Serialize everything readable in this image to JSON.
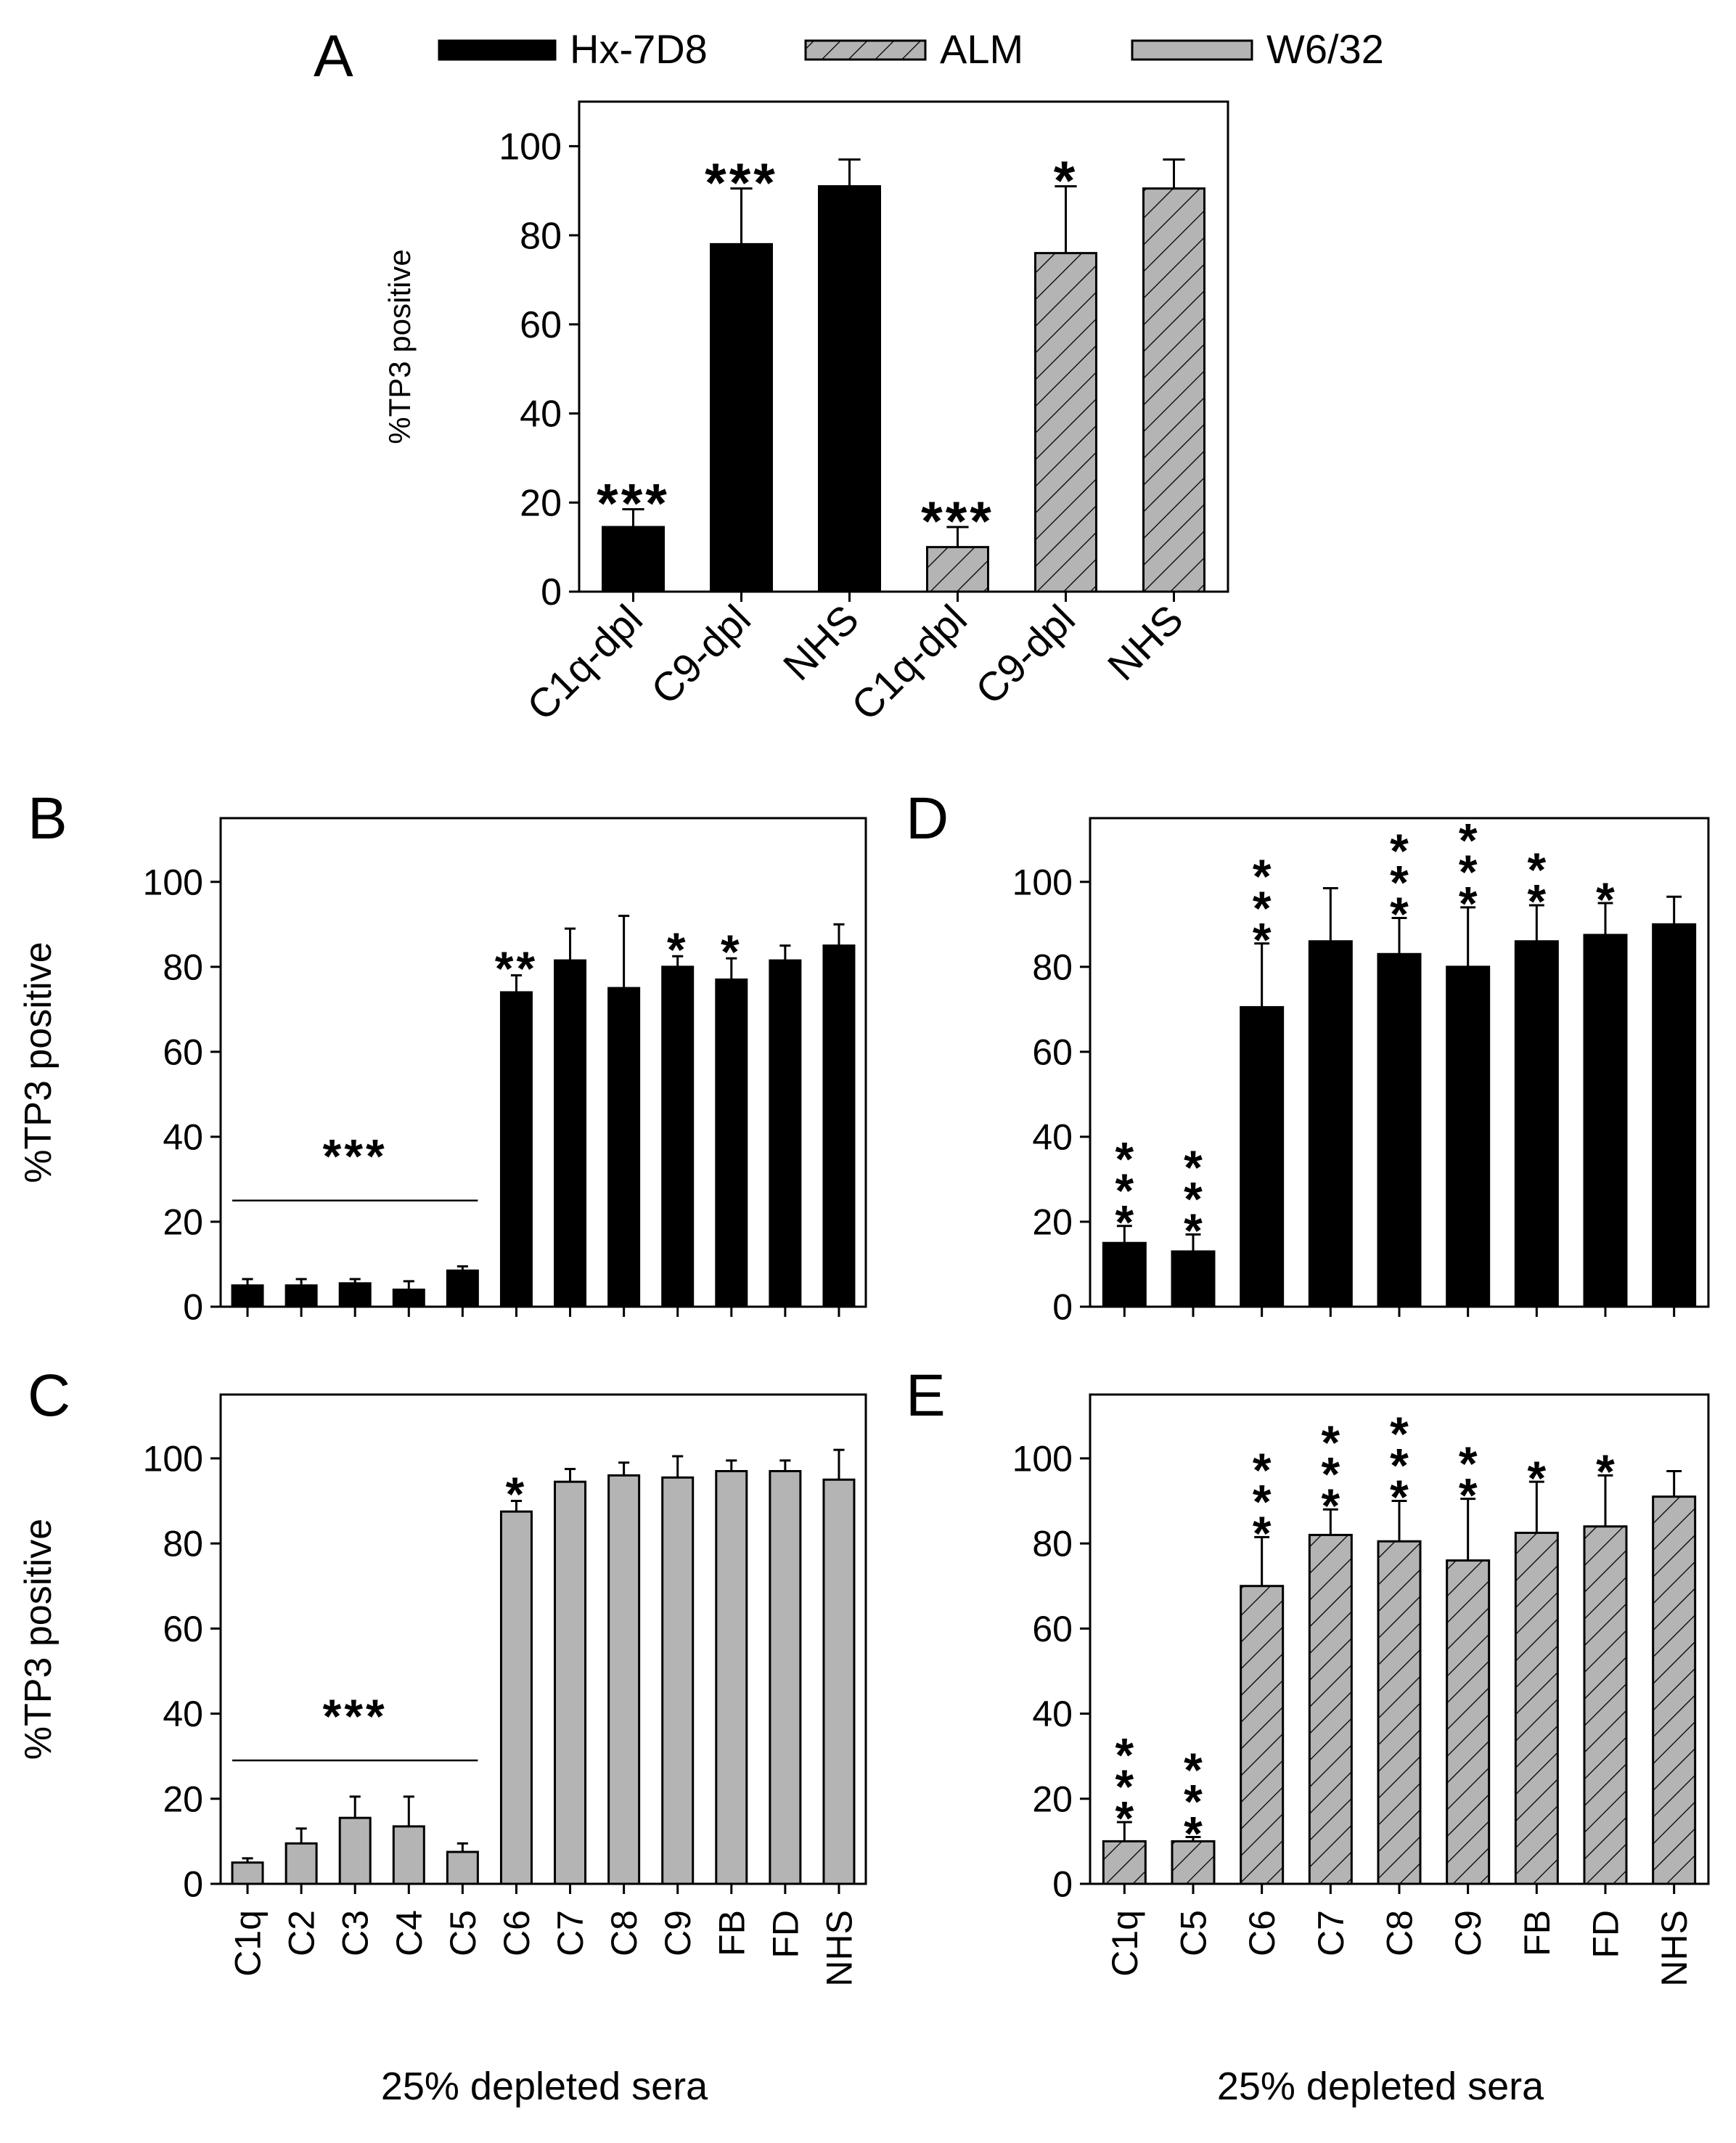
{
  "legend": [
    {
      "label": "Hx-7D8",
      "style": "solid"
    },
    {
      "label": "ALM",
      "style": "hatch"
    },
    {
      "label": "W6/32",
      "style": "gray"
    }
  ],
  "colors": {
    "black": "#000000",
    "gray": "#b4b4b4",
    "hatch_line": "#000000"
  },
  "chart_data": [
    {
      "panel": "A",
      "type": "bar",
      "ylabel": "%TP3 positive",
      "ylim": [
        0,
        110
      ],
      "yticks": [
        0,
        20,
        40,
        60,
        80,
        100
      ],
      "categories": [
        "C1q-dpl",
        "C9-dpl",
        "NHS",
        "C1q-dpl",
        "C9-dpl",
        "NHS"
      ],
      "values": [
        14.5,
        78,
        91,
        10,
        76,
        90.5
      ],
      "errors": [
        4,
        12.5,
        6,
        4.5,
        15,
        6.5
      ],
      "fills": [
        "solid",
        "solid",
        "solid",
        "hatch",
        "hatch",
        "hatch"
      ],
      "sig": [
        "***",
        "***",
        "",
        "***",
        "*",
        ""
      ],
      "sig_layout": "horizontal",
      "xlabel": ""
    },
    {
      "panel": "B",
      "type": "bar",
      "ylabel": "%TP3 positive",
      "ylim": [
        0,
        115
      ],
      "yticks": [
        0,
        20,
        40,
        60,
        80,
        100
      ],
      "categories": [
        "C1q",
        "C2",
        "C3",
        "C4",
        "C5",
        "C6",
        "C7",
        "C8",
        "C9",
        "FB",
        "FD",
        "NHS"
      ],
      "values": [
        5,
        5,
        5.5,
        4,
        8.5,
        74,
        81.5,
        75,
        80,
        77,
        81.5,
        85
      ],
      "errors": [
        1.5,
        1.5,
        1,
        2,
        1,
        4,
        7.5,
        17,
        2.5,
        5,
        3.5,
        5
      ],
      "fills": [
        "solid",
        "solid",
        "solid",
        "solid",
        "solid",
        "solid",
        "solid",
        "solid",
        "solid",
        "solid",
        "solid",
        "solid"
      ],
      "sig": [
        "",
        "",
        "",
        "",
        "",
        "**",
        "",
        "",
        "*",
        "*",
        "",
        ""
      ],
      "sig_layout": "horizontal",
      "group_sig": {
        "label": "***",
        "from": 0,
        "to": 4,
        "y": 25
      },
      "xlabel": ""
    },
    {
      "panel": "C",
      "type": "bar",
      "ylabel": "%TP3 positive",
      "ylim": [
        0,
        115
      ],
      "yticks": [
        0,
        20,
        40,
        60,
        80,
        100
      ],
      "categories": [
        "C1q",
        "C2",
        "C3",
        "C4",
        "C5",
        "C6",
        "C7",
        "C8",
        "C9",
        "FB",
        "FD",
        "NHS"
      ],
      "values": [
        5,
        9.5,
        15.5,
        13.5,
        7.5,
        87.5,
        94.5,
        96,
        95.5,
        97,
        97,
        95
      ],
      "errors": [
        1,
        3.5,
        5,
        7,
        2,
        2.5,
        3,
        3,
        5,
        2.5,
        2.5,
        7
      ],
      "fills": [
        "gray",
        "gray",
        "gray",
        "gray",
        "gray",
        "gray",
        "gray",
        "gray",
        "gray",
        "gray",
        "gray",
        "gray"
      ],
      "sig": [
        "",
        "",
        "",
        "",
        "",
        "*",
        "",
        "",
        "",
        "",
        "",
        ""
      ],
      "sig_layout": "horizontal",
      "group_sig": {
        "label": "***",
        "from": 0,
        "to": 4,
        "y": 29
      },
      "xlabel": "25% depleted sera"
    },
    {
      "panel": "D",
      "type": "bar",
      "ylabel": "",
      "ylim": [
        0,
        115
      ],
      "yticks": [
        0,
        20,
        40,
        60,
        80,
        100
      ],
      "categories": [
        "C1q",
        "C5",
        "C6",
        "C7",
        "C8",
        "C9",
        "FB",
        "FD",
        "NHS"
      ],
      "values": [
        15,
        13,
        70.5,
        86,
        83,
        80,
        86,
        87.5,
        90
      ],
      "errors": [
        4,
        4,
        15,
        12.5,
        8.5,
        14,
        8.5,
        7.5,
        6.5
      ],
      "fills": [
        "solid",
        "solid",
        "solid",
        "solid",
        "solid",
        "solid",
        "solid",
        "solid",
        "solid"
      ],
      "sig": [
        "***",
        "***",
        "***",
        "",
        "***",
        "***",
        "**",
        "*",
        ""
      ],
      "sig_layout": "vertical",
      "xlabel": ""
    },
    {
      "panel": "E",
      "type": "bar",
      "ylabel": "",
      "ylim": [
        0,
        115
      ],
      "yticks": [
        0,
        20,
        40,
        60,
        80,
        100
      ],
      "categories": [
        "C1q",
        "C5",
        "C6",
        "C7",
        "C8",
        "C9",
        "FB",
        "FD",
        "NHS"
      ],
      "values": [
        10,
        10,
        70,
        82,
        80.5,
        76,
        82.5,
        84,
        91
      ],
      "errors": [
        4.5,
        1,
        11.5,
        6,
        9.5,
        14.5,
        12,
        12,
        6
      ],
      "fills": [
        "hatch",
        "hatch",
        "hatch",
        "hatch",
        "hatch",
        "hatch",
        "hatch",
        "hatch",
        "hatch"
      ],
      "sig": [
        "***",
        "***",
        "***",
        "***",
        "***",
        "**",
        "*",
        "*",
        ""
      ],
      "sig_layout": "vertical",
      "xlabel": "25% depleted sera"
    }
  ]
}
